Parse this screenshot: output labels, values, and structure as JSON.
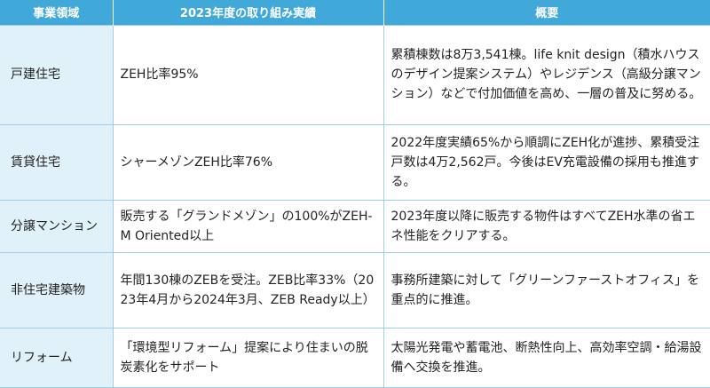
{
  "colors": {
    "header_bg": "#41a9da",
    "first_col_bg": "#e1f1f9",
    "border": "#9fcfe6"
  },
  "headers": [
    "事業領域",
    "2023年度の取り組み実績",
    "概要"
  ],
  "rows": [
    {
      "domain": "戸建住宅",
      "achievement": "ZEH比率95%",
      "summary": "累積棟数は8万3,541棟。life knit design（積水ハウスのデザイン提案システム）やレジデンス（高級分譲マンション）などで付加価値を高め、一層の普及に努める。"
    },
    {
      "domain": "賃貸住宅",
      "achievement": "シャーメゾンZEH比率76%",
      "summary": "2022年度実績65%から順調にZEH化が進捗、累積受注戸数は4万2,562戸。今後はEV充電設備の採用も推進する。"
    },
    {
      "domain": "分譲マンション",
      "achievement": "販売する「グランドメゾン」の100%がZEH-M Oriented以上",
      "summary": "2023年度以降に販売する物件はすべてZEH水準の省エネ性能をクリアする。"
    },
    {
      "domain": "非住宅建築物",
      "achievement": "年間130棟のZEBを受注。ZEB比率33%（2023年4月から2024年3月、ZEB Ready以上）",
      "summary": "事務所建築に対して「グリーンファーストオフィス」を重点的に推進。"
    },
    {
      "domain": "リフォーム",
      "achievement": "「環境型リフォーム」提案により住まいの脱炭素化をサポート",
      "summary": "太陽光発電や蓄電池、断熱性向上、高効率空調・給湯設備へ交換を推進。"
    }
  ]
}
